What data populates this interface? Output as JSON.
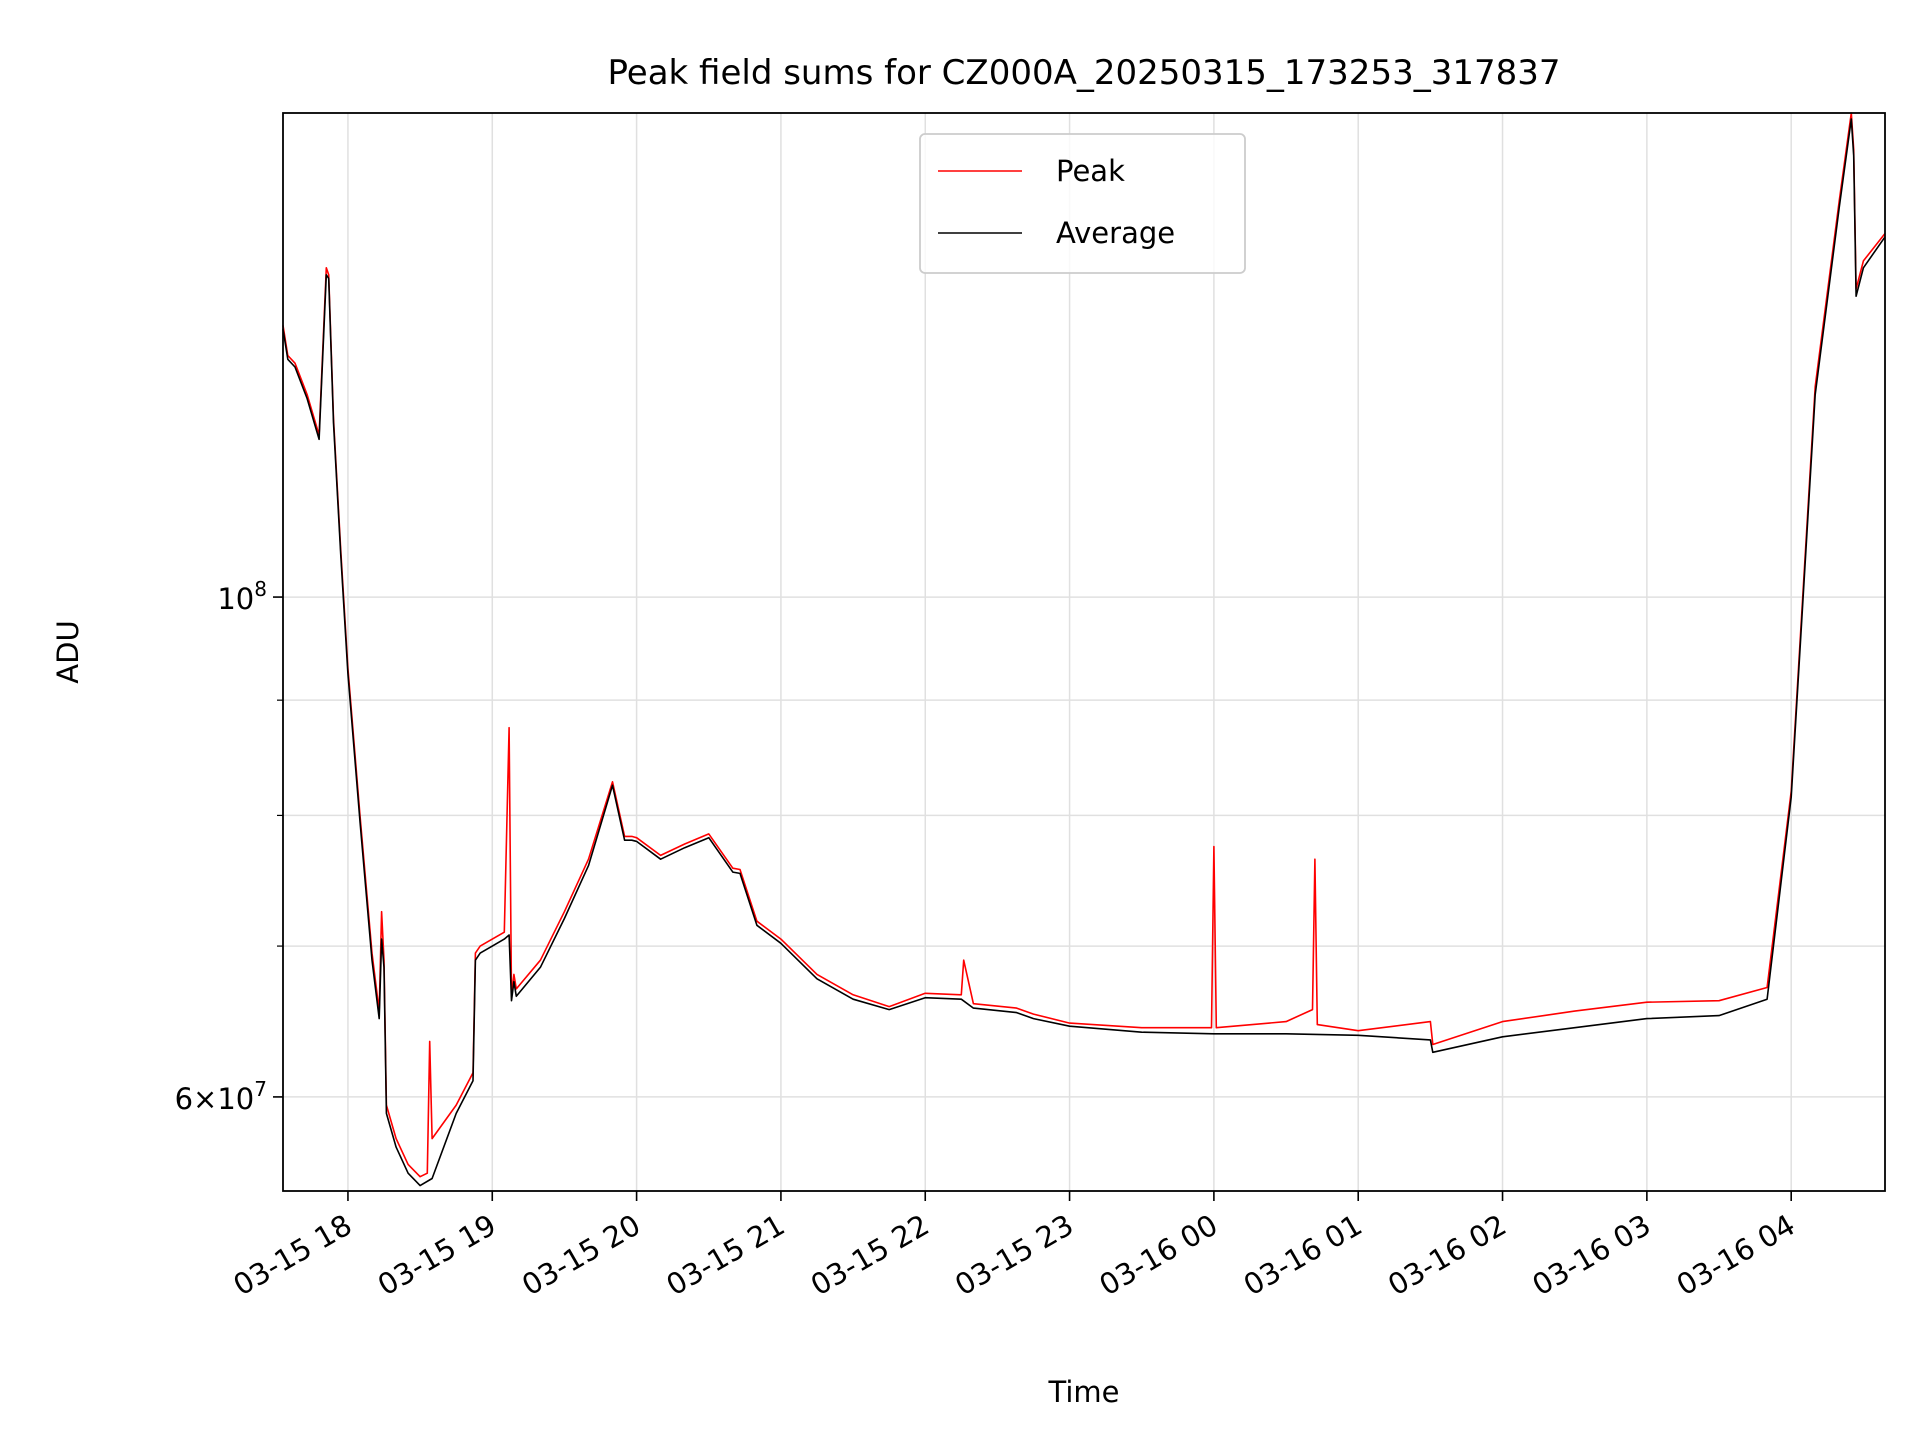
{
  "chart_data": {
    "type": "line",
    "title": "Peak field sums for CZ000A_20250315_173253_317837",
    "xlabel": "Time",
    "ylabel": "ADU",
    "yscale": "log",
    "xlim": [
      "2025-03-15 17:33",
      "2025-03-16 04:39"
    ],
    "ylim": [
      54500000,
      164000000
    ],
    "grid": true,
    "legend": "upper center",
    "xticks": [
      {
        "t": "2025-03-15 18:00",
        "label": "03-15 18"
      },
      {
        "t": "2025-03-15 19:00",
        "label": "03-15 19"
      },
      {
        "t": "2025-03-15 20:00",
        "label": "03-15 20"
      },
      {
        "t": "2025-03-15 21:00",
        "label": "03-15 21"
      },
      {
        "t": "2025-03-15 22:00",
        "label": "03-15 22"
      },
      {
        "t": "2025-03-15 23:00",
        "label": "03-15 23"
      },
      {
        "t": "2025-03-16 00:00",
        "label": "03-16 00"
      },
      {
        "t": "2025-03-16 01:00",
        "label": "03-16 01"
      },
      {
        "t": "2025-03-16 02:00",
        "label": "03-16 02"
      },
      {
        "t": "2025-03-16 03:00",
        "label": "03-16 03"
      },
      {
        "t": "2025-03-16 04:00",
        "label": "03-16 04"
      }
    ],
    "yticks_major": [
      {
        "value": 60000000,
        "mantissa": "6",
        "exp": "7"
      },
      {
        "value": 100000000,
        "mantissa": "",
        "exp": "8"
      }
    ],
    "yticks_minor": [
      70000000,
      80000000,
      90000000
    ],
    "series": [
      {
        "name": "Peak",
        "color": "#ff0000",
        "x": [
          "2025-03-15 17:33",
          "2025-03-15 17:35",
          "2025-03-15 17:38",
          "2025-03-15 17:43",
          "2025-03-15 17:48",
          "2025-03-15 17:51",
          "2025-03-15 17:52",
          "2025-03-15 17:54",
          "2025-03-15 17:57",
          "2025-03-15 18:00",
          "2025-03-15 18:05",
          "2025-03-15 18:10",
          "2025-03-15 18:13",
          "2025-03-15 18:14",
          "2025-03-15 18:15",
          "2025-03-15 18:16",
          "2025-03-15 18:20",
          "2025-03-15 18:25",
          "2025-03-15 18:30",
          "2025-03-15 18:33",
          "2025-03-15 18:34",
          "2025-03-15 18:35",
          "2025-03-15 18:45",
          "2025-03-15 18:52",
          "2025-03-15 18:53",
          "2025-03-15 18:55",
          "2025-03-15 19:00",
          "2025-03-15 19:05",
          "2025-03-15 19:07",
          "2025-03-15 19:08",
          "2025-03-15 19:09",
          "2025-03-15 19:10",
          "2025-03-15 19:20",
          "2025-03-15 19:30",
          "2025-03-15 19:40",
          "2025-03-15 19:50",
          "2025-03-15 19:55",
          "2025-03-15 19:58",
          "2025-03-15 20:00",
          "2025-03-15 20:10",
          "2025-03-15 20:20",
          "2025-03-15 20:30",
          "2025-03-15 20:40",
          "2025-03-15 20:43",
          "2025-03-15 20:50",
          "2025-03-15 21:00",
          "2025-03-15 21:15",
          "2025-03-15 21:30",
          "2025-03-15 21:45",
          "2025-03-15 22:00",
          "2025-03-15 22:15",
          "2025-03-15 22:16",
          "2025-03-15 22:20",
          "2025-03-15 22:38",
          "2025-03-15 22:45",
          "2025-03-15 23:00",
          "2025-03-15 23:30",
          "2025-03-15 23:59",
          "2025-03-16 00:00",
          "2025-03-16 00:01",
          "2025-03-16 00:30",
          "2025-03-16 00:41",
          "2025-03-16 00:42",
          "2025-03-16 00:43",
          "2025-03-16 01:00",
          "2025-03-16 01:30",
          "2025-03-16 01:31",
          "2025-03-16 02:00",
          "2025-03-16 02:30",
          "2025-03-16 03:00",
          "2025-03-16 03:30",
          "2025-03-16 03:50",
          "2025-03-16 04:00",
          "2025-03-16 04:10",
          "2025-03-16 04:20",
          "2025-03-16 04:25",
          "2025-03-16 04:26",
          "2025-03-16 04:27",
          "2025-03-16 04:30",
          "2025-03-16 04:39"
        ],
        "y": [
          132000000,
          128000000,
          127000000,
          123000000,
          118000000,
          140000000,
          139000000,
          120000000,
          105000000,
          93000000,
          80000000,
          69500000,
          65500000,
          72500000,
          69000000,
          59500000,
          57500000,
          56000000,
          55300000,
          55500000,
          63500000,
          57500000,
          59500000,
          61500000,
          69500000,
          70000000,
          70500000,
          71000000,
          87500000,
          66500000,
          68000000,
          67000000,
          69000000,
          72500000,
          76500000,
          82800000,
          78300000,
          78300000,
          78200000,
          76800000,
          77700000,
          78500000,
          75800000,
          75700000,
          71800000,
          70500000,
          68000000,
          66600000,
          65800000,
          66700000,
          66600000,
          69000000,
          66000000,
          65700000,
          65300000,
          64700000,
          64400000,
          64400000,
          77500000,
          64400000,
          64800000,
          65600000,
          76500000,
          64600000,
          64200000,
          64800000,
          63300000,
          64800000,
          65500000,
          66100000,
          66200000,
          67100000,
          82000000,
          124000000,
          150000000,
          164000000,
          158000000,
          137000000,
          141000000,
          145000000
        ]
      },
      {
        "name": "Average",
        "color": "#000000",
        "x": [
          "2025-03-15 17:33",
          "2025-03-15 17:35",
          "2025-03-15 17:38",
          "2025-03-15 17:43",
          "2025-03-15 17:48",
          "2025-03-15 17:51",
          "2025-03-15 17:52",
          "2025-03-15 17:54",
          "2025-03-15 17:57",
          "2025-03-15 18:00",
          "2025-03-15 18:05",
          "2025-03-15 18:10",
          "2025-03-15 18:13",
          "2025-03-15 18:14",
          "2025-03-15 18:15",
          "2025-03-15 18:16",
          "2025-03-15 18:20",
          "2025-03-15 18:25",
          "2025-03-15 18:30",
          "2025-03-15 18:35",
          "2025-03-15 18:45",
          "2025-03-15 18:52",
          "2025-03-15 18:53",
          "2025-03-15 18:55",
          "2025-03-15 19:00",
          "2025-03-15 19:05",
          "2025-03-15 19:07",
          "2025-03-15 19:08",
          "2025-03-15 19:09",
          "2025-03-15 19:10",
          "2025-03-15 19:20",
          "2025-03-15 19:30",
          "2025-03-15 19:40",
          "2025-03-15 19:50",
          "2025-03-15 19:55",
          "2025-03-15 19:58",
          "2025-03-15 20:00",
          "2025-03-15 20:10",
          "2025-03-15 20:20",
          "2025-03-15 20:30",
          "2025-03-15 20:40",
          "2025-03-15 20:43",
          "2025-03-15 20:50",
          "2025-03-15 21:00",
          "2025-03-15 21:15",
          "2025-03-15 21:30",
          "2025-03-15 21:45",
          "2025-03-15 22:00",
          "2025-03-15 22:15",
          "2025-03-15 22:20",
          "2025-03-15 22:38",
          "2025-03-15 22:45",
          "2025-03-15 23:00",
          "2025-03-15 23:30",
          "2025-03-16 00:00",
          "2025-03-16 00:30",
          "2025-03-16 01:00",
          "2025-03-16 01:30",
          "2025-03-16 01:31",
          "2025-03-16 02:00",
          "2025-03-16 02:30",
          "2025-03-16 03:00",
          "2025-03-16 03:30",
          "2025-03-16 03:50",
          "2025-03-16 04:00",
          "2025-03-16 04:10",
          "2025-03-16 04:20",
          "2025-03-16 04:25",
          "2025-03-16 04:26",
          "2025-03-16 04:27",
          "2025-03-16 04:30",
          "2025-03-16 04:39"
        ],
        "y": [
          131500000,
          127500000,
          126500000,
          122500000,
          117500000,
          139000000,
          138500000,
          119500000,
          104500000,
          92500000,
          79500000,
          69000000,
          65000000,
          70500000,
          68500000,
          59000000,
          57000000,
          55500000,
          54800000,
          55200000,
          59000000,
          61000000,
          69000000,
          69500000,
          70000000,
          70500000,
          70800000,
          66200000,
          67500000,
          66500000,
          68500000,
          72000000,
          76000000,
          82500000,
          78000000,
          78000000,
          77900000,
          76500000,
          77400000,
          78200000,
          75500000,
          75400000,
          71500000,
          70200000,
          67700000,
          66300000,
          65600000,
          66400000,
          66300000,
          65700000,
          65400000,
          65000000,
          64500000,
          64100000,
          64000000,
          64000000,
          63900000,
          63600000,
          62800000,
          63800000,
          64400000,
          65000000,
          65200000,
          66300000,
          81500000,
          123000000,
          149000000,
          163000000,
          157000000,
          136000000,
          140000000,
          144500000
        ]
      }
    ]
  }
}
